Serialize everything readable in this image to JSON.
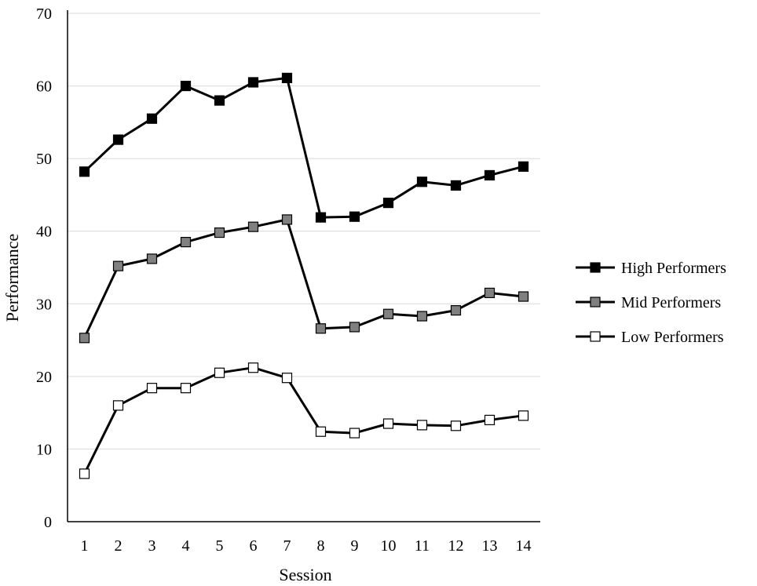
{
  "chart_data": {
    "type": "line",
    "xlabel": "Session",
    "ylabel": "Performance",
    "x": [
      1,
      2,
      3,
      4,
      5,
      6,
      7,
      8,
      9,
      10,
      11,
      12,
      13,
      14
    ],
    "ylim": [
      0,
      70
    ],
    "yticks": [
      0,
      10,
      20,
      30,
      40,
      50,
      60,
      70
    ],
    "grid": "horizontal",
    "legend_position": "right",
    "series": [
      {
        "name": "High Performers",
        "marker_fill": "#000000",
        "values": [
          48.2,
          52.6,
          55.5,
          60.0,
          58.0,
          60.5,
          61.1,
          41.9,
          42.0,
          43.9,
          46.8,
          46.3,
          47.7,
          48.9
        ]
      },
      {
        "name": "Mid Performers",
        "marker_fill": "#808080",
        "values": [
          25.3,
          35.2,
          36.2,
          38.5,
          39.8,
          40.6,
          41.6,
          26.6,
          26.8,
          28.6,
          28.3,
          29.1,
          31.5,
          31.0
        ]
      },
      {
        "name": "Low Performers",
        "marker_fill": "#ffffff",
        "values": [
          6.6,
          16.0,
          18.4,
          18.4,
          20.5,
          21.2,
          19.8,
          12.4,
          12.2,
          13.5,
          13.3,
          13.2,
          14.0,
          14.6
        ]
      }
    ],
    "line_color": "#000000"
  }
}
